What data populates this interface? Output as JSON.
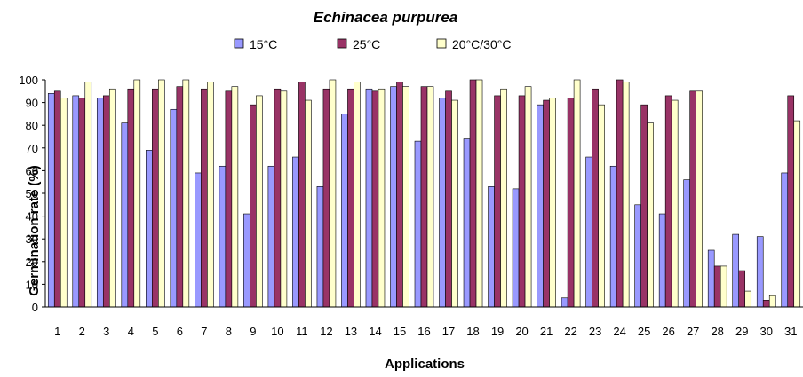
{
  "chart_data": {
    "type": "bar",
    "title": "Echinacea purpurea",
    "xlabel": "Applications",
    "ylabel": "Germination rate (%)",
    "ylim": [
      0,
      100
    ],
    "yticks": [
      "0",
      "10",
      "20",
      "30",
      "40",
      "50",
      "60",
      "70",
      "80",
      "90",
      "100"
    ],
    "legend_position": "top",
    "categories": [
      "1",
      "2",
      "3",
      "4",
      "5",
      "6",
      "7",
      "8",
      "9",
      "10",
      "11",
      "12",
      "13",
      "14",
      "15",
      "16",
      "17",
      "18",
      "19",
      "20",
      "21",
      "22",
      "23",
      "24",
      "25",
      "26",
      "27",
      "28",
      "29",
      "30",
      "31"
    ],
    "series": [
      {
        "name": "15°C",
        "color": "#9999ff",
        "values": [
          94,
          93,
          92,
          81,
          69,
          87,
          59,
          62,
          41,
          62,
          66,
          53,
          85,
          96,
          97,
          73,
          92,
          74,
          53,
          52,
          89,
          4,
          66,
          62,
          45,
          41,
          56,
          25,
          32,
          31,
          59
        ]
      },
      {
        "name": "25°C",
        "color": "#993366",
        "values": [
          95,
          92,
          93,
          96,
          96,
          97,
          96,
          95,
          89,
          96,
          99,
          96,
          96,
          95,
          99,
          97,
          95,
          100,
          93,
          93,
          91,
          92,
          96,
          100,
          89,
          93,
          95,
          18,
          16,
          3,
          93
        ]
      },
      {
        "name": "20°C/30°C",
        "color": "#ffffcc",
        "values": [
          92,
          99,
          96,
          100,
          100,
          100,
          99,
          97,
          93,
          95,
          91,
          100,
          99,
          96,
          97,
          97,
          91,
          100,
          96,
          97,
          92,
          100,
          89,
          99,
          81,
          91,
          95,
          18,
          7,
          5,
          82
        ]
      }
    ]
  }
}
